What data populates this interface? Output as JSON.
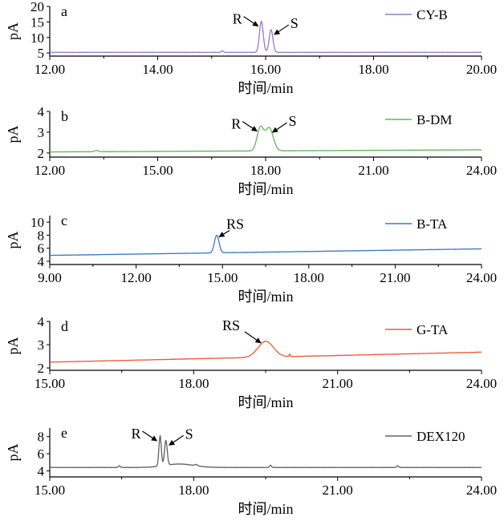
{
  "chart_data": [
    {
      "type": "line",
      "panel_label": "a",
      "legend": "CY-B",
      "color": "#9b7ac2",
      "ylabel": "pA",
      "xlabel": "时间/min",
      "xlim": [
        12,
        20
      ],
      "xticks": [
        "12.00",
        "14.00",
        "16.00",
        "18.00",
        "20.00"
      ],
      "ylim": [
        4,
        20
      ],
      "yticks": [
        "5",
        "10",
        "15",
        "20"
      ],
      "baseline": 5.2,
      "peaks": [
        {
          "x": 15.92,
          "height": 10.0,
          "width": 0.035
        },
        {
          "x": 16.1,
          "height": 7.3,
          "width": 0.035
        },
        {
          "x": 15.2,
          "height": 0.5,
          "width": 0.02
        }
      ],
      "annotations": [
        {
          "text": "R",
          "peak": 0,
          "side": "left"
        },
        {
          "text": "S",
          "peak": 1,
          "side": "right"
        }
      ]
    },
    {
      "type": "line",
      "panel_label": "b",
      "legend": "B-DM",
      "color": "#63b363",
      "ylabel": "pA",
      "xlabel": "时间/min",
      "xlim": [
        12,
        24
      ],
      "xticks": [
        "12.00",
        "15.00",
        "18.00",
        "21.00",
        "24.00"
      ],
      "ylim": [
        1.8,
        4
      ],
      "yticks": [
        "2",
        "3",
        "4"
      ],
      "baseline": 2.05,
      "drift": 0.1,
      "peaks": [
        {
          "x": 17.85,
          "height": 1.1,
          "width": 0.09
        },
        {
          "x": 18.1,
          "height": 1.1,
          "width": 0.11
        },
        {
          "x": 13.3,
          "height": 0.06,
          "width": 0.05
        }
      ],
      "annotations": [
        {
          "text": "R",
          "peak": 0,
          "side": "left"
        },
        {
          "text": "S",
          "peak": 1,
          "side": "right"
        }
      ]
    },
    {
      "type": "line",
      "panel_label": "c",
      "legend": "B-TA",
      "color": "#3d78c5",
      "ylabel": "pA",
      "xlabel": "时间/min",
      "xlim": [
        9,
        24
      ],
      "xticks": [
        "9.00",
        "12.00",
        "15.00",
        "18.00",
        "21.00",
        "24.00"
      ],
      "ylim": [
        3.5,
        11
      ],
      "yticks": [
        "4",
        "6",
        "8",
        "10"
      ],
      "baseline": 4.9,
      "drift": 1.0,
      "peaks": [
        {
          "x": 14.8,
          "height": 2.7,
          "width": 0.08
        }
      ],
      "annotations": [
        {
          "text": "RS",
          "peak": 0,
          "side": "right"
        }
      ]
    },
    {
      "type": "line",
      "panel_label": "d",
      "legend": "G-TA",
      "color": "#ea5a3c",
      "ylabel": "pA",
      "xlabel": "时间/min",
      "xlim": [
        15,
        24
      ],
      "xticks": [
        "15.00",
        "18.00",
        "21.00",
        "24.00"
      ],
      "ylim": [
        1.9,
        4
      ],
      "yticks": [
        "2",
        "3",
        "4"
      ],
      "baseline": 2.25,
      "drift": 0.43,
      "peaks": [
        {
          "x": 19.5,
          "height": 0.68,
          "width": 0.16
        },
        {
          "x": 20.0,
          "height": 0.1,
          "width": 0.012
        }
      ],
      "annotations": [
        {
          "text": "RS",
          "peak": 0,
          "side": "left"
        }
      ]
    },
    {
      "type": "line",
      "panel_label": "e",
      "legend": "DEX120",
      "color": "#606060",
      "ylabel": "pA",
      "xlabel": "时间/min",
      "xlim": [
        15,
        24
      ],
      "xticks": [
        "15.00",
        "18.00",
        "21.00",
        "24.00"
      ],
      "ylim": [
        3.3,
        9
      ],
      "yticks": [
        "4",
        "6",
        "8"
      ],
      "baseline": 4.4,
      "peaks": [
        {
          "x": 17.3,
          "height": 3.5,
          "width": 0.025
        },
        {
          "x": 17.42,
          "height": 2.9,
          "width": 0.028
        },
        {
          "x": 17.7,
          "height": 0.4,
          "width": 0.3
        },
        {
          "x": 16.45,
          "height": 0.2,
          "width": 0.02
        },
        {
          "x": 18.05,
          "height": 0.15,
          "width": 0.03
        },
        {
          "x": 19.6,
          "height": 0.25,
          "width": 0.02
        },
        {
          "x": 22.25,
          "height": 0.2,
          "width": 0.02
        }
      ],
      "annotations": [
        {
          "text": "R",
          "peak": 0,
          "side": "left"
        },
        {
          "text": "S",
          "peak": 1,
          "side": "right"
        }
      ]
    }
  ]
}
